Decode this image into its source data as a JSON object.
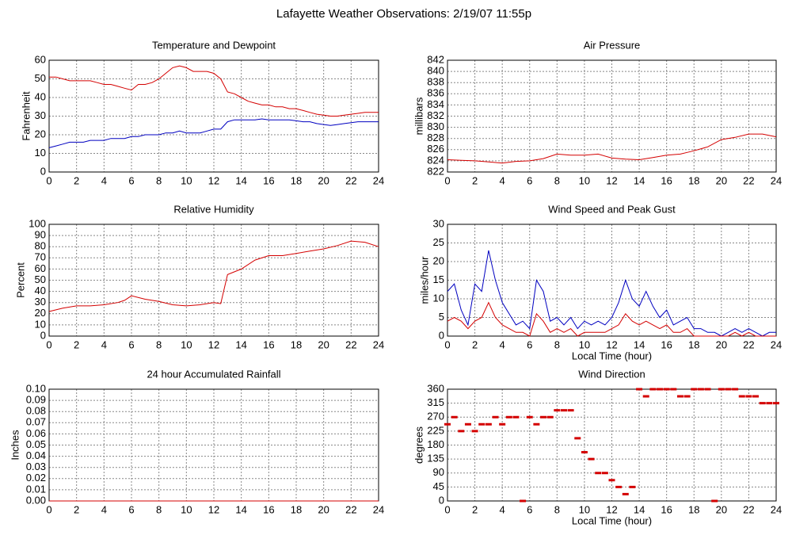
{
  "title": "Lafayette Weather Observations: 2/19/07 11:55p",
  "chart_data": [
    {
      "type": "line",
      "title": "Temperature and Dewpoint",
      "y_label": "Fahrenheit",
      "x": [
        0,
        0.5,
        1,
        1.5,
        2,
        2.5,
        3,
        3.5,
        4,
        4.5,
        5,
        5.5,
        6,
        6.5,
        7,
        7.5,
        8,
        8.5,
        9,
        9.5,
        10,
        10.5,
        11,
        11.5,
        12,
        12.5,
        13,
        13.5,
        14,
        14.5,
        15,
        15.5,
        16,
        16.5,
        17,
        17.5,
        18,
        18.5,
        19,
        19.5,
        20,
        20.5,
        21,
        21.5,
        22,
        22.5,
        23,
        23.5,
        24
      ],
      "series": [
        {
          "color": "#d40000",
          "values": [
            51,
            51,
            50,
            49,
            49,
            49,
            49,
            48,
            47,
            47,
            46,
            45,
            44,
            47,
            47,
            48,
            50,
            53,
            56,
            57,
            56,
            54,
            54,
            54,
            53,
            50,
            43,
            42,
            40,
            38,
            37,
            36,
            36,
            35,
            35,
            34,
            34,
            33,
            32,
            31,
            30.5,
            30,
            30,
            30.5,
            31,
            31.5,
            32,
            32,
            32
          ]
        },
        {
          "color": "#0000c0",
          "values": [
            13,
            14,
            15,
            16,
            16,
            16,
            17,
            17,
            17,
            18,
            18,
            18,
            19,
            19,
            20,
            20,
            20,
            21,
            21,
            22,
            21,
            21,
            21,
            22,
            23,
            23,
            27,
            28,
            28,
            28,
            28,
            28.5,
            28,
            28,
            28,
            28,
            27.5,
            27,
            27,
            26,
            25.5,
            25,
            25.5,
            26,
            26.5,
            27,
            27,
            27,
            27
          ]
        }
      ],
      "xlim": [
        0,
        24
      ],
      "xticks": [
        0,
        2,
        4,
        6,
        8,
        10,
        12,
        14,
        16,
        18,
        20,
        22,
        24
      ],
      "ylim": [
        0,
        60
      ],
      "yticks": [
        0,
        10,
        20,
        30,
        40,
        50,
        60
      ],
      "grid": true
    },
    {
      "type": "line",
      "title": "Air Pressure",
      "y_label": "millibars",
      "x": [
        0,
        1,
        2,
        3,
        4,
        5,
        6,
        7,
        8,
        9,
        10,
        11,
        12,
        13,
        14,
        15,
        16,
        17,
        17.5,
        18,
        19,
        20,
        21,
        22,
        23,
        24
      ],
      "series": [
        {
          "color": "#d40000",
          "values": [
            824.2,
            824.1,
            824.0,
            823.8,
            823.6,
            823.9,
            824.0,
            824.4,
            825.2,
            825.0,
            825.0,
            825.2,
            824.5,
            824.3,
            824.2,
            824.6,
            825.0,
            825.2,
            825.5,
            825.8,
            826.5,
            827.8,
            828.2,
            828.8,
            828.8,
            828.3
          ]
        }
      ],
      "xlim": [
        0,
        24
      ],
      "xticks": [
        0,
        2,
        4,
        6,
        8,
        10,
        12,
        14,
        16,
        18,
        20,
        22,
        24
      ],
      "ylim": [
        822,
        842
      ],
      "yticks": [
        822,
        824,
        826,
        828,
        830,
        832,
        834,
        836,
        838,
        840,
        842
      ],
      "grid": true
    },
    {
      "type": "line",
      "title": "Relative Humidity",
      "y_label": "Percent",
      "x": [
        0,
        1,
        2,
        3,
        4,
        5,
        5.5,
        6,
        7,
        8,
        9,
        10,
        11,
        12,
        12.5,
        13,
        14,
        15,
        16,
        17,
        18,
        19,
        20,
        21,
        22,
        23,
        24
      ],
      "series": [
        {
          "color": "#d40000",
          "values": [
            22,
            25,
            27,
            27,
            28,
            30,
            32,
            36,
            33,
            31,
            28,
            27,
            28,
            30,
            29,
            55,
            60,
            68,
            72,
            72,
            74,
            76,
            78,
            81,
            85,
            84,
            80
          ]
        }
      ],
      "xlim": [
        0,
        24
      ],
      "xticks": [
        0,
        2,
        4,
        6,
        8,
        10,
        12,
        14,
        16,
        18,
        20,
        22,
        24
      ],
      "ylim": [
        0,
        100
      ],
      "yticks": [
        0,
        10,
        20,
        30,
        40,
        50,
        60,
        70,
        80,
        90,
        100
      ],
      "grid": true
    },
    {
      "type": "line",
      "title": "Wind Speed and Peak Gust",
      "y_label": "miles/hour",
      "x_label": "Local Time (hour)",
      "x": [
        0,
        0.5,
        1,
        1.5,
        2,
        2.5,
        3,
        3.5,
        4,
        4.5,
        5,
        5.5,
        6,
        6.5,
        7,
        7.5,
        8,
        8.5,
        9,
        9.5,
        10,
        10.5,
        11,
        11.5,
        12,
        12.5,
        13,
        13.5,
        14,
        14.5,
        15,
        15.5,
        16,
        16.5,
        17,
        17.5,
        18,
        18.5,
        19,
        19.5,
        20,
        20.5,
        21,
        21.5,
        22,
        22.5,
        23,
        23.5,
        24
      ],
      "series": [
        {
          "color": "#0000c0",
          "values": [
            12,
            14,
            7,
            3,
            14,
            12,
            23,
            15,
            9,
            6,
            3,
            4,
            2,
            15,
            12,
            4,
            5,
            3,
            5,
            2,
            4,
            3,
            4,
            3,
            5,
            9,
            15,
            10,
            8,
            12,
            8,
            5,
            7,
            3,
            4,
            5,
            2,
            2,
            1,
            1,
            0,
            1,
            2,
            1,
            2,
            1,
            0,
            1,
            1
          ]
        },
        {
          "color": "#d40000",
          "values": [
            4,
            5,
            4,
            2,
            4,
            5,
            9,
            5,
            3,
            2,
            1,
            1,
            0,
            6,
            4,
            1,
            2,
            1,
            2,
            0,
            1,
            1,
            1,
            1,
            2,
            3,
            6,
            4,
            3,
            4,
            3,
            2,
            3,
            1,
            1,
            2,
            0,
            0,
            0,
            0,
            0,
            0,
            1,
            0,
            1,
            0,
            0,
            0,
            0
          ]
        }
      ],
      "xlim": [
        0,
        24
      ],
      "xticks": [
        0,
        2,
        4,
        6,
        8,
        10,
        12,
        14,
        16,
        18,
        20,
        22,
        24
      ],
      "ylim": [
        0,
        30
      ],
      "yticks": [
        0,
        5,
        10,
        15,
        20,
        25,
        30
      ],
      "grid": true
    },
    {
      "type": "line",
      "title": "24 hour Accumulated Rainfall",
      "y_label": "Inches",
      "x": [
        0,
        24
      ],
      "series": [
        {
          "color": "#d40000",
          "values": [
            0,
            0
          ]
        }
      ],
      "xlim": [
        0,
        24
      ],
      "xticks": [
        0,
        2,
        4,
        6,
        8,
        10,
        12,
        14,
        16,
        18,
        20,
        22,
        24
      ],
      "ylim": [
        0,
        0.1
      ],
      "yticks": [
        {
          "value": 0,
          "label": "0.00"
        },
        {
          "value": 0.01,
          "label": "0.01"
        },
        {
          "value": 0.02,
          "label": "0.02"
        },
        {
          "value": 0.03,
          "label": "0.03"
        },
        {
          "value": 0.04,
          "label": "0.04"
        },
        {
          "value": 0.05,
          "label": "0.05"
        },
        {
          "value": 0.06,
          "label": "0.06"
        },
        {
          "value": 0.07,
          "label": "0.07"
        },
        {
          "value": 0.08,
          "label": "0.08"
        },
        {
          "value": 0.09,
          "label": "0.09"
        },
        {
          "value": 0.1,
          "label": "0.10"
        }
      ],
      "grid": true
    },
    {
      "type": "scatter",
      "title": "Wind Direction",
      "y_label": "degrees",
      "x_label": "Local Time (hour)",
      "color": "#d40000",
      "x": [
        0,
        0.5,
        1,
        1.5,
        2,
        2.5,
        3,
        3.5,
        4,
        4.5,
        5,
        5.5,
        6,
        6.5,
        7,
        7.5,
        8,
        8.5,
        9,
        9.5,
        10,
        10.5,
        11,
        11.5,
        12,
        12.5,
        13,
        13.5,
        14,
        14.5,
        15,
        15.5,
        16,
        16.5,
        17,
        17.5,
        18,
        18.5,
        19,
        19.5,
        20,
        20.5,
        21,
        21.5,
        22,
        22.5,
        23,
        23.5,
        24
      ],
      "values": [
        247,
        270,
        225,
        247,
        225,
        247,
        247,
        270,
        247,
        270,
        270,
        0,
        270,
        247,
        270,
        270,
        292,
        292,
        292,
        202,
        157,
        135,
        90,
        90,
        67,
        45,
        22,
        45,
        360,
        337,
        360,
        360,
        360,
        360,
        337,
        337,
        360,
        360,
        360,
        0,
        360,
        360,
        360,
        337,
        337,
        337,
        315,
        315,
        315
      ],
      "xlim": [
        0,
        24
      ],
      "xticks": [
        0,
        2,
        4,
        6,
        8,
        10,
        12,
        14,
        16,
        18,
        20,
        22,
        24
      ],
      "ylim": [
        0,
        360
      ],
      "yticks": [
        0,
        45,
        90,
        135,
        180,
        225,
        270,
        315,
        360
      ],
      "grid": true
    }
  ]
}
